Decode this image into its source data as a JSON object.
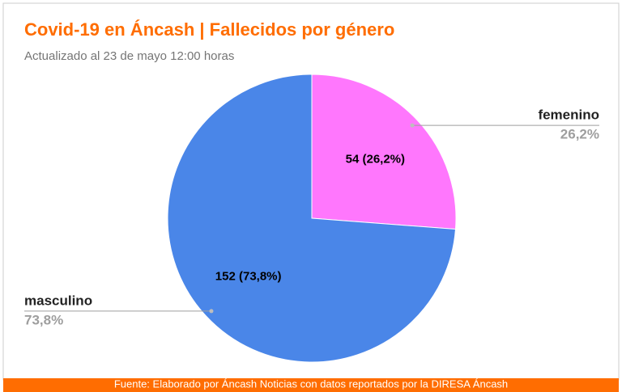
{
  "chart_data": {
    "type": "pie",
    "title": "Covid-19 en Áncash | Fallecidos por género",
    "subtitle": "Actualizado al 23 de mayo 12:00 horas",
    "categories": [
      "femenino",
      "masculino"
    ],
    "values": [
      54,
      152
    ],
    "value_labels": [
      "54 (26,2%)",
      "152 (73,8%)"
    ],
    "percent_labels": [
      "26,2%",
      "73,8%"
    ],
    "colors": [
      "#ff77fd",
      "#4a86e8"
    ],
    "source": "Fuente: Elaborado por Áncash Noticias con datos reportados por la DIRESA Áncash"
  }
}
